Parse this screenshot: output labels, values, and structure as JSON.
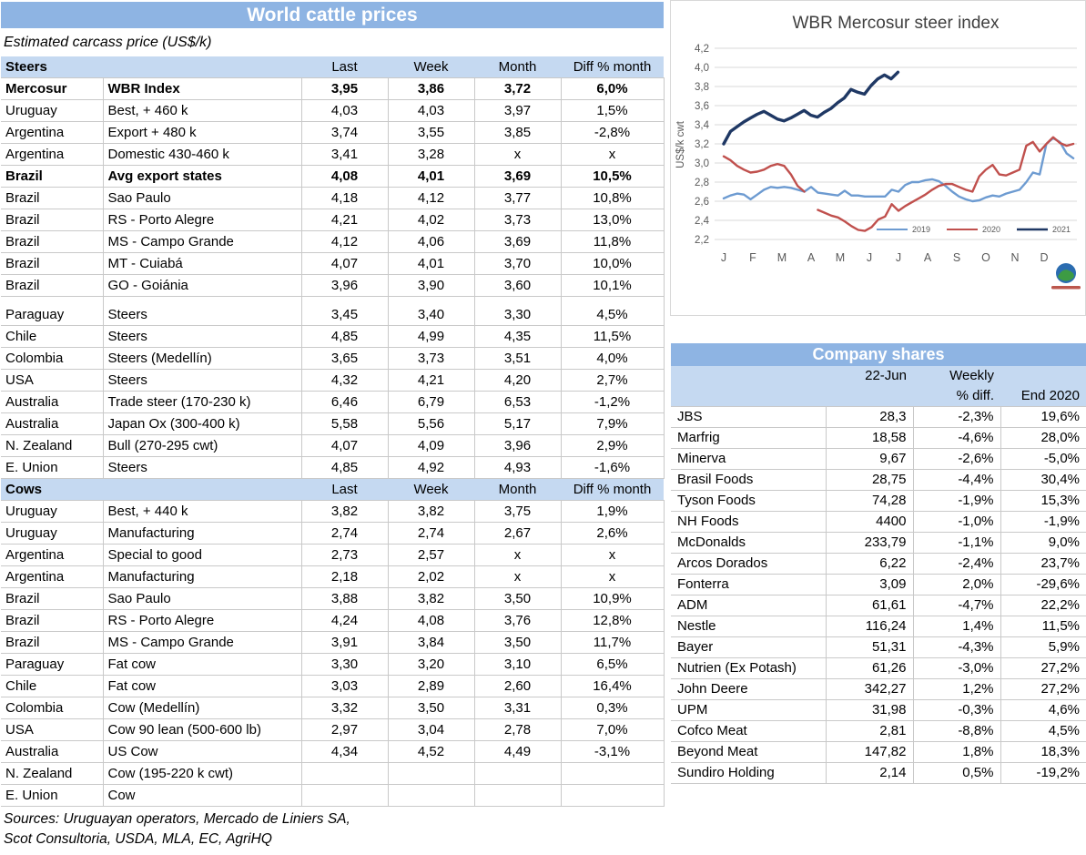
{
  "colors": {
    "title_bar": "#8EB4E3",
    "section_header": "#C5D9F1",
    "series_2019": "#6D9BD1",
    "series_2020": "#C0504D",
    "series_2021": "#1F3864"
  },
  "cattle_table": {
    "title": "World cattle prices",
    "subtitle": "Estimated carcass price (US$/k)",
    "columns": [
      "Last",
      "Week",
      "Month",
      "Diff % month"
    ],
    "sections": [
      {
        "label": "Steers",
        "rows": [
          {
            "country": "Mercosur",
            "detail": "WBR Index",
            "last": "3,95",
            "week": "3,86",
            "month": "3,72",
            "diff": "6,0%",
            "bold": true
          },
          {
            "country": "Uruguay",
            "detail": "Best, + 460 k",
            "last": "4,03",
            "week": "4,03",
            "month": "3,97",
            "diff": "1,5%"
          },
          {
            "country": "Argentina",
            "detail": "Export + 480 k",
            "last": "3,74",
            "week": "3,55",
            "month": "3,85",
            "diff": "-2,8%"
          },
          {
            "country": "Argentina",
            "detail": "Domestic 430-460 k",
            "last": "3,41",
            "week": "3,28",
            "month": "x",
            "diff": "x"
          },
          {
            "country": "Brazil",
            "detail": "Avg export states",
            "last": "4,08",
            "week": "4,01",
            "month": "3,69",
            "diff": "10,5%",
            "bold": true
          },
          {
            "country": "Brazil",
            "detail": "Sao Paulo",
            "last": "4,18",
            "week": "4,12",
            "month": "3,77",
            "diff": "10,8%"
          },
          {
            "country": "Brazil",
            "detail": "RS - Porto Alegre",
            "last": "4,21",
            "week": "4,02",
            "month": "3,73",
            "diff": "13,0%"
          },
          {
            "country": "Brazil",
            "detail": "MS - Campo Grande",
            "last": "4,12",
            "week": "4,06",
            "month": "3,69",
            "diff": "11,8%"
          },
          {
            "country": "Brazil",
            "detail": "MT - Cuiabá",
            "last": "4,07",
            "week": "4,01",
            "month": "3,70",
            "diff": "10,0%"
          },
          {
            "country": "Brazil",
            "detail": "GO - Goiánia",
            "last": "3,96",
            "week": "3,90",
            "month": "3,60",
            "diff": "10,1%"
          },
          {
            "country": "Paraguay",
            "detail": "Steers",
            "last": "3,45",
            "week": "3,40",
            "month": "3,30",
            "diff": "4,5%",
            "gap_before": true
          },
          {
            "country": "Chile",
            "detail": "Steers",
            "last": "4,85",
            "week": "4,99",
            "month": "4,35",
            "diff": "11,5%"
          },
          {
            "country": "Colombia",
            "detail": "Steers (Medellín)",
            "last": "3,65",
            "week": "3,73",
            "month": "3,51",
            "diff": "4,0%"
          },
          {
            "country": "USA",
            "detail": "Steers",
            "last": "4,32",
            "week": "4,21",
            "month": "4,20",
            "diff": "2,7%"
          },
          {
            "country": "Australia",
            "detail": "Trade steer (170-230 k)",
            "last": "6,46",
            "week": "6,79",
            "month": "6,53",
            "diff": "-1,2%"
          },
          {
            "country": "Australia",
            "detail": "Japan Ox (300-400 k)",
            "last": "5,58",
            "week": "5,56",
            "month": "5,17",
            "diff": "7,9%"
          },
          {
            "country": "N. Zealand",
            "detail": "Bull (270-295 cwt)",
            "last": "4,07",
            "week": "4,09",
            "month": "3,96",
            "diff": "2,9%"
          },
          {
            "country": "E. Union",
            "detail": "Steers",
            "last": "4,85",
            "week": "4,92",
            "month": "4,93",
            "diff": "-1,6%"
          }
        ]
      },
      {
        "label": "Cows",
        "rows": [
          {
            "country": "Uruguay",
            "detail": "Best, + 440 k",
            "last": "3,82",
            "week": "3,82",
            "month": "3,75",
            "diff": "1,9%"
          },
          {
            "country": "Uruguay",
            "detail": "Manufacturing",
            "last": "2,74",
            "week": "2,74",
            "month": "2,67",
            "diff": "2,6%"
          },
          {
            "country": "Argentina",
            "detail": "Special to good",
            "last": "2,73",
            "week": "2,57",
            "month": "x",
            "diff": "x"
          },
          {
            "country": "Argentina",
            "detail": "Manufacturing",
            "last": "2,18",
            "week": "2,02",
            "month": "x",
            "diff": "x"
          },
          {
            "country": "Brazil",
            "detail": "Sao Paulo",
            "last": "3,88",
            "week": "3,82",
            "month": "3,50",
            "diff": "10,9%"
          },
          {
            "country": "Brazil",
            "detail": "RS - Porto Alegre",
            "last": "4,24",
            "week": "4,08",
            "month": "3,76",
            "diff": "12,8%"
          },
          {
            "country": "Brazil",
            "detail": "MS - Campo Grande",
            "last": "3,91",
            "week": "3,84",
            "month": "3,50",
            "diff": "11,7%"
          },
          {
            "country": "Paraguay",
            "detail": "Fat cow",
            "last": "3,30",
            "week": "3,20",
            "month": "3,10",
            "diff": "6,5%"
          },
          {
            "country": "Chile",
            "detail": "Fat cow",
            "last": "3,03",
            "week": "2,89",
            "month": "2,60",
            "diff": "16,4%"
          },
          {
            "country": "Colombia",
            "detail": "Cow (Medellín)",
            "last": "3,32",
            "week": "3,50",
            "month": "3,31",
            "diff": "0,3%"
          },
          {
            "country": "USA",
            "detail": "Cow 90 lean (500-600 lb)",
            "last": "2,97",
            "week": "3,04",
            "month": "2,78",
            "diff": "7,0%"
          },
          {
            "country": "Australia",
            "detail": "US Cow",
            "last": "4,34",
            "week": "4,52",
            "month": "4,49",
            "diff": "-3,1%"
          },
          {
            "country": "N. Zealand",
            "detail": "Cow (195-220 k cwt)",
            "no_values": true
          },
          {
            "country": "E. Union",
            "detail": "Cow",
            "no_values": true
          }
        ]
      }
    ],
    "sources_line1": "Sources: Uruguayan operators, Mercado de Liniers SA,",
    "sources_line2": "Scot Consultoria, USDA, MLA, EC, AgriHQ"
  },
  "chart_data": {
    "type": "line",
    "title": "WBR Mercosur steer index",
    "ylabel": "US$/k cwt",
    "ylim": [
      2.2,
      4.2
    ],
    "ytick_step": 0.2,
    "grid": true,
    "legend_position": "inside-bottom-right",
    "x_tick_labels": [
      "J",
      "F",
      "M",
      "A",
      "M",
      "J",
      "J",
      "A",
      "S",
      "O",
      "N",
      "D"
    ],
    "series": [
      {
        "name": "2019",
        "color": "#6D9BD1",
        "width": 2.4,
        "x_step": 0.2308,
        "values": [
          2.63,
          2.66,
          2.68,
          2.67,
          2.62,
          2.67,
          2.72,
          2.75,
          2.74,
          2.75,
          2.74,
          2.72,
          2.7,
          2.75,
          2.69,
          2.68,
          2.67,
          2.66,
          2.71,
          2.66,
          2.66,
          2.65,
          2.65,
          2.65,
          2.65,
          2.72,
          2.7,
          2.77,
          2.8,
          2.8,
          2.82,
          2.83,
          2.81,
          2.76,
          2.7,
          2.65,
          2.62,
          2.6,
          2.61,
          2.64,
          2.66,
          2.65,
          2.68,
          2.7,
          2.72,
          2.8,
          2.9,
          2.88,
          3.2,
          3.26,
          3.22,
          3.1,
          3.05
        ]
      },
      {
        "name": "2020",
        "color": "#C0504D",
        "width": 2.4,
        "x_step": 0.2308,
        "values": [
          3.07,
          3.03,
          2.97,
          2.93,
          2.9,
          2.91,
          2.93,
          2.97,
          2.99,
          2.97,
          2.88,
          2.76,
          2.7,
          null,
          2.51,
          2.48,
          2.45,
          2.43,
          2.39,
          2.34,
          2.3,
          2.29,
          2.33,
          2.41,
          2.44,
          2.57,
          2.5,
          2.55,
          2.59,
          2.63,
          2.67,
          2.72,
          2.76,
          2.78,
          2.78,
          2.75,
          2.72,
          2.7,
          2.86,
          2.93,
          2.98,
          2.88,
          2.87,
          2.9,
          2.93,
          3.18,
          3.22,
          3.12,
          3.2,
          3.27,
          3.21,
          3.18,
          3.2
        ]
      },
      {
        "name": "2021",
        "color": "#1F3864",
        "width": 3.4,
        "x_step": 0.23,
        "values": [
          3.2,
          3.33,
          3.38,
          3.43,
          3.47,
          3.51,
          3.54,
          3.5,
          3.46,
          3.44,
          3.47,
          3.51,
          3.55,
          3.5,
          3.48,
          3.53,
          3.57,
          3.63,
          3.68,
          3.77,
          3.74,
          3.72,
          3.81,
          3.88,
          3.92,
          3.88,
          3.95
        ]
      }
    ]
  },
  "company_table": {
    "title": "Company shares",
    "header": {
      "date": "22-Jun",
      "weekly_line1": "Weekly",
      "weekly_line2": "% diff.",
      "end": "End 2020"
    },
    "rows": [
      {
        "name": "JBS",
        "value": "28,3",
        "weekly": "-2,3%",
        "end2020": "19,6%"
      },
      {
        "name": "Marfrig",
        "value": "18,58",
        "weekly": "-4,6%",
        "end2020": "28,0%"
      },
      {
        "name": "Minerva",
        "value": "9,67",
        "weekly": "-2,6%",
        "end2020": "-5,0%"
      },
      {
        "name": "Brasil Foods",
        "value": "28,75",
        "weekly": "-4,4%",
        "end2020": "30,4%"
      },
      {
        "name": "Tyson Foods",
        "value": "74,28",
        "weekly": "-1,9%",
        "end2020": "15,3%"
      },
      {
        "name": "NH Foods",
        "value": "4400",
        "weekly": "-1,0%",
        "end2020": "-1,9%"
      },
      {
        "name": "McDonalds",
        "value": "233,79",
        "weekly": "-1,1%",
        "end2020": "9,0%"
      },
      {
        "name": "Arcos Dorados",
        "value": "6,22",
        "weekly": "-2,4%",
        "end2020": "23,7%"
      },
      {
        "name": "Fonterra",
        "value": "3,09",
        "weekly": "2,0%",
        "end2020": "-29,6%"
      },
      {
        "name": "ADM",
        "value": "61,61",
        "weekly": "-4,7%",
        "end2020": "22,2%"
      },
      {
        "name": "Nestle",
        "value": "116,24",
        "weekly": "1,4%",
        "end2020": "11,5%"
      },
      {
        "name": "Bayer",
        "value": "51,31",
        "weekly": "-4,3%",
        "end2020": "5,9%"
      },
      {
        "name": "Nutrien (Ex Potash)",
        "value": "61,26",
        "weekly": "-3,0%",
        "end2020": "27,2%"
      },
      {
        "name": "John Deere",
        "value": "342,27",
        "weekly": "1,2%",
        "end2020": "27,2%"
      },
      {
        "name": "UPM",
        "value": "31,98",
        "weekly": "-0,3%",
        "end2020": "4,6%"
      },
      {
        "name": "Cofco Meat",
        "value": "2,81",
        "weekly": "-8,8%",
        "end2020": "4,5%"
      },
      {
        "name": "Beyond Meat",
        "value": "147,82",
        "weekly": "1,8%",
        "end2020": "18,3%"
      },
      {
        "name": "Sundiro Holding",
        "value": "2,14",
        "weekly": "0,5%",
        "end2020": "-19,2%"
      }
    ]
  }
}
